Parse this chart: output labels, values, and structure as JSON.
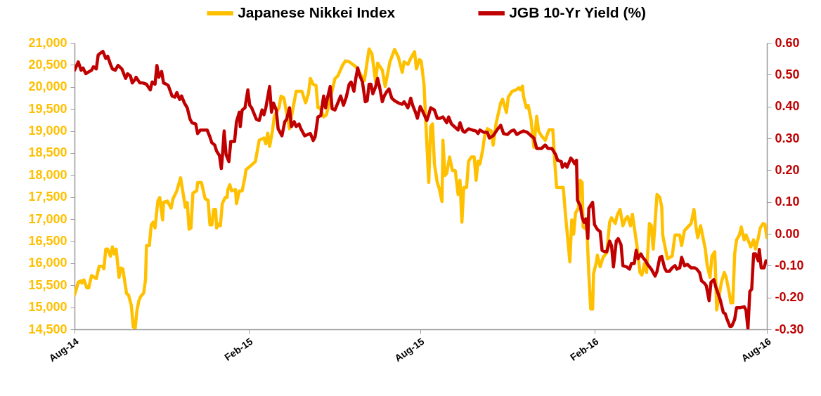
{
  "chart_data": {
    "type": "line",
    "legend": "top",
    "grid": false,
    "line_style": "solid",
    "xlim": [
      "2014-08-01",
      "2016-08-01"
    ],
    "xticks": [
      {
        "value": "2014-08-01",
        "label": "Aug-14"
      },
      {
        "value": "2015-02-01",
        "label": "Feb-15"
      },
      {
        "value": "2015-08-01",
        "label": "Aug-15"
      },
      {
        "value": "2016-02-01",
        "label": "Feb-16"
      },
      {
        "value": "2016-08-01",
        "label": "Aug-16"
      }
    ],
    "ylim": [
      14500,
      21000
    ],
    "yticks": [
      {
        "value": 14500,
        "label": "14,500"
      },
      {
        "value": 15000,
        "label": "15,000"
      },
      {
        "value": 15500,
        "label": "15,500"
      },
      {
        "value": 16000,
        "label": "16,000"
      },
      {
        "value": 16500,
        "label": "16,500"
      },
      {
        "value": 17000,
        "label": "17,000"
      },
      {
        "value": 17500,
        "label": "17,500"
      },
      {
        "value": 18000,
        "label": "18,000"
      },
      {
        "value": 18500,
        "label": "18,500"
      },
      {
        "value": 19000,
        "label": "19,000"
      },
      {
        "value": 19500,
        "label": "19,500"
      },
      {
        "value": 20000,
        "label": "20,000"
      },
      {
        "value": 20500,
        "label": "20,500"
      },
      {
        "value": 21000,
        "label": "21,000"
      }
    ],
    "y2lim": [
      -0.3,
      0.6
    ],
    "y2ticks": [
      {
        "value": -0.3,
        "label": "-0.30"
      },
      {
        "value": -0.2,
        "label": "-0.20"
      },
      {
        "value": -0.1,
        "label": "-0.10"
      },
      {
        "value": 0,
        "label": "0.00"
      },
      {
        "value": 0.1,
        "label": "0.10"
      },
      {
        "value": 0.2,
        "label": "0.20"
      },
      {
        "value": 0.3,
        "label": "0.30"
      },
      {
        "value": 0.4,
        "label": "0.40"
      },
      {
        "value": 0.5,
        "label": "0.50"
      },
      {
        "value": 0.6,
        "label": "0.60"
      }
    ],
    "series": [
      {
        "name": "Japanese Nikkei Index",
        "color": "#ffc000",
        "x": [
          "2014-08-01",
          "2014-08-05",
          "2014-08-08",
          "2014-08-09",
          "2014-08-11",
          "2014-08-14",
          "2014-08-16",
          "2014-08-19",
          "2014-08-24",
          "2014-08-27",
          "2014-08-31",
          "2014-09-01",
          "2014-09-03",
          "2014-09-05",
          "2014-09-08",
          "2014-09-10",
          "2014-09-12",
          "2014-09-14",
          "2014-09-17",
          "2014-09-19",
          "2014-09-21",
          "2014-09-25",
          "2014-09-27",
          "2014-09-30",
          "2014-10-02",
          "2014-10-04",
          "2014-10-06",
          "2014-10-08",
          "2014-10-10",
          "2014-10-13",
          "2014-10-15",
          "2014-10-16",
          "2014-10-19",
          "2014-10-21",
          "2014-10-23",
          "2014-10-25",
          "2014-10-28",
          "2014-10-30",
          "2014-11-02",
          "2014-11-03",
          "2014-11-07",
          "2014-11-11",
          "2014-11-13",
          "2014-11-17",
          "2014-11-21",
          "2014-11-26",
          "2014-11-28",
          "2014-11-30",
          "2014-12-02",
          "2014-12-04",
          "2014-12-08",
          "2014-12-09",
          "2014-12-13",
          "2014-12-17",
          "2014-12-20",
          "2014-12-22",
          "2014-12-24",
          "2014-12-26",
          "2014-12-28",
          "2014-12-29",
          "2015-01-01",
          "2015-01-02",
          "2015-01-04",
          "2015-01-07",
          "2015-01-09",
          "2015-01-10",
          "2015-01-12",
          "2015-01-14",
          "2015-01-18",
          "2015-01-19",
          "2015-01-22",
          "2015-01-25",
          "2015-01-28",
          "2015-01-29",
          "2015-02-04",
          "2015-02-08",
          "2015-02-12",
          "2015-02-17",
          "2015-02-19",
          "2015-02-21",
          "2015-02-23",
          "2015-02-26",
          "2015-02-28",
          "2015-03-05",
          "2015-03-07",
          "2015-03-10",
          "2015-03-16",
          "2015-03-18",
          "2015-03-23",
          "2015-03-29",
          "2015-04-02",
          "2015-04-05",
          "2015-04-07",
          "2015-04-10",
          "2015-04-13",
          "2015-04-15",
          "2015-04-17",
          "2015-04-21",
          "2015-04-24",
          "2015-05-03",
          "2015-05-06",
          "2015-05-11",
          "2015-05-14",
          "2015-05-18",
          "2015-05-25",
          "2015-06-03",
          "2015-06-08",
          "2015-06-11",
          "2015-06-15",
          "2015-06-17",
          "2015-06-22",
          "2015-06-25",
          "2015-06-30",
          "2015-07-05",
          "2015-07-09",
          "2015-07-13",
          "2015-07-15",
          "2015-07-19",
          "2015-07-22",
          "2015-07-26",
          "2015-07-28",
          "2015-07-31",
          "2015-08-02",
          "2015-08-05",
          "2015-08-07",
          "2015-08-10",
          "2015-08-12",
          "2015-08-14",
          "2015-08-16",
          "2015-08-19",
          "2015-08-21",
          "2015-08-24",
          "2015-08-25",
          "2015-08-27",
          "2015-08-29",
          "2015-09-01",
          "2015-09-04",
          "2015-09-07",
          "2015-09-10",
          "2015-09-12",
          "2015-09-14",
          "2015-09-16",
          "2015-09-19",
          "2015-09-21",
          "2015-09-24",
          "2015-09-27",
          "2015-09-29",
          "2015-10-01",
          "2015-10-03",
          "2015-10-06",
          "2015-10-08",
          "2015-10-11",
          "2015-10-15",
          "2015-10-17",
          "2015-10-20",
          "2015-10-25",
          "2015-10-27",
          "2015-10-31",
          "2015-11-02",
          "2015-11-06",
          "2015-11-10",
          "2015-11-13",
          "2015-11-15",
          "2015-11-17",
          "2015-11-18",
          "2015-11-21",
          "2015-11-23",
          "2015-11-26",
          "2015-11-29",
          "2015-12-02",
          "2015-12-04",
          "2015-12-07",
          "2015-12-11",
          "2015-12-15",
          "2015-12-19",
          "2015-12-21",
          "2015-12-23",
          "2015-12-30",
          "2016-01-01",
          "2016-01-06",
          "2016-01-08",
          "2016-01-10",
          "2016-01-12",
          "2016-01-15",
          "2016-01-17",
          "2016-01-19",
          "2016-01-20",
          "2016-01-24",
          "2016-01-26",
          "2016-01-28",
          "2016-01-30",
          "2016-01-31",
          "2016-02-03",
          "2016-02-04",
          "2016-02-07",
          "2016-02-10",
          "2016-02-14",
          "2016-02-17",
          "2016-02-19",
          "2016-02-23",
          "2016-02-25",
          "2016-02-28",
          "2016-03-02",
          "2016-03-05",
          "2016-03-07",
          "2016-03-10",
          "2016-03-12",
          "2016-03-17",
          "2016-03-20",
          "2016-03-22",
          "2016-03-25",
          "2016-03-27",
          "2016-03-30",
          "2016-04-01",
          "2016-04-03",
          "2016-04-07",
          "2016-04-10",
          "2016-04-12",
          "2016-04-13",
          "2016-04-18",
          "2016-04-23",
          "2016-04-26",
          "2016-05-01",
          "2016-05-03",
          "2016-05-06",
          "2016-05-13",
          "2016-05-16",
          "2016-05-18",
          "2016-05-20",
          "2016-05-23",
          "2016-05-25",
          "2016-05-28",
          "2016-05-30",
          "2016-06-02",
          "2016-06-04",
          "2016-06-07",
          "2016-06-08",
          "2016-06-09",
          "2016-06-12",
          "2016-06-14",
          "2016-06-17",
          "2016-06-19",
          "2016-06-22",
          "2016-06-24",
          "2016-06-26",
          "2016-06-28",
          "2016-06-30",
          "2016-07-03",
          "2016-07-05",
          "2016-07-08",
          "2016-07-10",
          "2016-07-15",
          "2016-07-18",
          "2016-07-20",
          "2016-07-23",
          "2016-07-25",
          "2016-07-28",
          "2016-07-30",
          "2016-08-01"
        ],
        "values": [
          15280,
          15570,
          15600,
          15550,
          15620,
          15440,
          15440,
          15720,
          15650,
          15930,
          15930,
          15870,
          16320,
          16320,
          16160,
          16370,
          16210,
          16320,
          15680,
          15890,
          15870,
          15310,
          15280,
          15040,
          14560,
          14520,
          14940,
          15150,
          15250,
          15320,
          15630,
          16400,
          16400,
          16870,
          16930,
          16800,
          17410,
          17490,
          16980,
          17380,
          17410,
          17250,
          17460,
          17640,
          17940,
          17270,
          17380,
          16770,
          16800,
          17590,
          17640,
          17830,
          17830,
          17460,
          17430,
          16870,
          16870,
          17220,
          17220,
          16800,
          16900,
          16850,
          17350,
          17490,
          17490,
          17670,
          17780,
          17640,
          17670,
          17350,
          17640,
          17640,
          17960,
          18120,
          18230,
          18310,
          18790,
          18840,
          18710,
          18950,
          18650,
          19000,
          19340,
          19530,
          19790,
          19750,
          19050,
          19320,
          19900,
          19900,
          19640,
          19850,
          20190,
          20060,
          20030,
          19530,
          19530,
          19320,
          19370,
          20190,
          20250,
          20490,
          20590,
          20570,
          20460,
          20140,
          20860,
          20750,
          20110,
          20540,
          20380,
          20010,
          20570,
          20850,
          20670,
          20330,
          20570,
          20510,
          20650,
          20800,
          20410,
          20620,
          20590,
          20060,
          19160,
          17830,
          19100,
          19160,
          18250,
          17830,
          17700,
          17400,
          18790,
          17990,
          18040,
          18410,
          18100,
          18100,
          17560,
          17880,
          16930,
          17720,
          17720,
          18310,
          18410,
          18410,
          17880,
          18310,
          18250,
          18570,
          18890,
          19050,
          19000,
          18680,
          19160,
          19640,
          19720,
          19420,
          19770,
          19900,
          19930,
          19980,
          19930,
          20020,
          19790,
          19530,
          19580,
          19260,
          18630,
          19330,
          19000,
          18890,
          18790,
          19030,
          19030,
          18310,
          17720,
          17720,
          17190,
          16030,
          16980,
          16660,
          17140,
          17250,
          17880,
          17830,
          16820,
          16760,
          15760,
          14960,
          14960,
          15760,
          16030,
          16180,
          15920,
          16130,
          16240,
          16930,
          17030,
          16900,
          17090,
          17220,
          16850,
          17010,
          17060,
          16850,
          17110,
          16370,
          15790,
          15730,
          16000,
          15790,
          16900,
          16850,
          16320,
          17560,
          17490,
          17270,
          16640,
          16100,
          16160,
          16640,
          16640,
          16400,
          16740,
          16900,
          17220,
          16850,
          16580,
          16850,
          16640,
          16320,
          15950,
          15680,
          16160,
          16260,
          15630,
          14940,
          15310,
          15570,
          15790,
          15680,
          15360,
          15100,
          15100,
          16210,
          16530,
          16640,
          16820,
          16530,
          16640,
          16370,
          16530,
          16320,
          16580,
          16800,
          16900,
          16880,
          16580
        ]
      },
      {
        "name": "JGB 10-Yr Yield (%)",
        "color": "#c00000",
        "axis": "y2",
        "x": [
          "2014-08-01",
          "2014-08-05",
          "2014-08-08",
          "2014-08-10",
          "2014-08-13",
          "2014-08-15",
          "2014-08-19",
          "2014-08-21",
          "2014-08-24",
          "2014-08-26",
          "2014-08-29",
          "2014-08-31",
          "2014-09-03",
          "2014-09-05",
          "2014-09-08",
          "2014-09-10",
          "2014-09-13",
          "2014-09-16",
          "2014-09-20",
          "2014-09-24",
          "2014-09-26",
          "2014-09-29",
          "2014-10-01",
          "2014-10-04",
          "2014-10-05",
          "2014-10-09",
          "2014-10-12",
          "2014-10-16",
          "2014-10-20",
          "2014-10-22",
          "2014-10-25",
          "2014-10-27",
          "2014-10-29",
          "2014-11-01",
          "2014-11-03",
          "2014-11-06",
          "2014-11-08",
          "2014-11-12",
          "2014-11-15",
          "2014-11-17",
          "2014-11-20",
          "2014-11-22",
          "2014-11-25",
          "2014-11-28",
          "2014-12-01",
          "2014-12-03",
          "2014-12-07",
          "2014-12-09",
          "2014-12-12",
          "2014-12-19",
          "2014-12-22",
          "2014-12-24",
          "2014-12-27",
          "2014-12-29",
          "2015-01-01",
          "2015-01-03",
          "2015-01-04",
          "2015-01-06",
          "2015-01-08",
          "2015-01-11",
          "2015-01-13",
          "2015-01-17",
          "2015-01-19",
          "2015-01-22",
          "2015-01-23",
          "2015-01-25",
          "2015-01-28",
          "2015-01-31",
          "2015-02-02",
          "2015-02-04",
          "2015-02-09",
          "2015-02-12",
          "2015-02-15",
          "2015-02-17",
          "2015-02-19",
          "2015-02-23",
          "2015-02-25",
          "2015-02-27",
          "2015-03-02",
          "2015-03-04",
          "2015-03-08",
          "2015-03-11",
          "2015-03-13",
          "2015-03-16",
          "2015-03-18",
          "2015-03-21",
          "2015-03-23",
          "2015-03-26",
          "2015-03-28",
          "2015-04-01",
          "2015-04-07",
          "2015-04-10",
          "2015-04-12",
          "2015-04-15",
          "2015-04-18",
          "2015-04-21",
          "2015-04-23",
          "2015-04-25",
          "2015-04-28",
          "2015-04-30",
          "2015-05-03",
          "2015-05-06",
          "2015-05-09",
          "2015-05-12",
          "2015-05-15",
          "2015-05-18",
          "2015-05-20",
          "2015-05-23",
          "2015-05-25",
          "2015-05-27",
          "2015-05-29",
          "2015-06-01",
          "2015-06-04",
          "2015-06-06",
          "2015-06-08",
          "2015-06-10",
          "2015-06-12",
          "2015-06-15",
          "2015-06-17",
          "2015-06-19",
          "2015-06-22",
          "2015-06-24",
          "2015-06-27",
          "2015-06-29",
          "2015-07-02",
          "2015-07-05",
          "2015-07-09",
          "2015-07-13",
          "2015-07-15",
          "2015-07-19",
          "2015-07-22",
          "2015-07-24",
          "2015-07-27",
          "2015-07-29",
          "2015-08-01",
          "2015-08-04",
          "2015-08-08",
          "2015-08-10",
          "2015-08-12",
          "2015-08-16",
          "2015-08-19",
          "2015-08-22",
          "2015-08-25",
          "2015-08-29",
          "2015-08-31",
          "2015-09-03",
          "2015-09-06",
          "2015-09-10",
          "2015-09-12",
          "2015-09-15",
          "2015-09-17",
          "2015-09-21",
          "2015-09-25",
          "2015-09-29",
          "2015-10-01",
          "2015-10-03",
          "2015-10-07",
          "2015-10-11",
          "2015-10-13",
          "2015-10-17",
          "2015-10-21",
          "2015-10-25",
          "2015-10-28",
          "2015-11-01",
          "2015-11-05",
          "2015-11-08",
          "2015-11-11",
          "2015-11-15",
          "2015-11-18",
          "2015-11-22",
          "2015-11-26",
          "2015-11-29",
          "2015-12-02",
          "2015-12-07",
          "2015-12-11",
          "2015-12-14",
          "2015-12-18",
          "2015-12-22",
          "2015-12-24",
          "2015-12-28",
          "2015-12-29",
          "2016-01-01",
          "2016-01-03",
          "2016-01-07",
          "2016-01-09",
          "2016-01-11",
          "2016-01-13",
          "2016-01-14",
          "2016-01-17",
          "2016-01-19",
          "2016-01-21",
          "2016-01-23",
          "2016-01-25",
          "2016-01-26",
          "2016-01-30",
          "2016-02-01",
          "2016-02-04",
          "2016-02-07",
          "2016-02-09",
          "2016-02-12",
          "2016-02-14",
          "2016-02-17",
          "2016-02-19",
          "2016-02-21",
          "2016-02-24",
          "2016-02-26",
          "2016-02-29",
          "2016-03-02",
          "2016-03-06",
          "2016-03-09",
          "2016-03-11",
          "2016-03-14",
          "2016-03-16",
          "2016-03-18",
          "2016-03-21",
          "2016-03-23",
          "2016-03-26",
          "2016-03-28",
          "2016-04-01",
          "2016-04-05",
          "2016-04-07",
          "2016-04-10",
          "2016-04-12",
          "2016-04-15",
          "2016-04-17",
          "2016-04-20",
          "2016-04-23",
          "2016-04-26",
          "2016-04-28",
          "2016-05-01",
          "2016-05-03",
          "2016-05-06",
          "2016-05-09",
          "2016-05-13",
          "2016-05-17",
          "2016-05-19",
          "2016-05-22",
          "2016-05-24",
          "2016-05-27",
          "2016-05-29",
          "2016-06-01",
          "2016-06-03",
          "2016-06-06",
          "2016-06-08",
          "2016-06-11",
          "2016-06-13",
          "2016-06-16",
          "2016-06-18",
          "2016-06-20",
          "2016-06-23",
          "2016-06-25",
          "2016-06-28",
          "2016-06-30",
          "2016-07-04",
          "2016-07-08",
          "2016-07-10",
          "2016-07-12",
          "2016-07-14",
          "2016-07-16",
          "2016-07-18",
          "2016-07-20",
          "2016-07-23",
          "2016-07-24",
          "2016-07-26",
          "2016-07-29",
          "2016-07-31"
        ],
        "values": [
          0.514,
          0.54,
          0.514,
          0.521,
          0.503,
          0.507,
          0.514,
          0.525,
          0.518,
          0.562,
          0.569,
          0.573,
          0.551,
          0.558,
          0.532,
          0.518,
          0.514,
          0.529,
          0.518,
          0.488,
          0.503,
          0.496,
          0.474,
          0.485,
          0.492,
          0.474,
          0.474,
          0.47,
          0.452,
          0.477,
          0.47,
          0.529,
          0.492,
          0.51,
          0.474,
          0.47,
          0.466,
          0.433,
          0.429,
          0.444,
          0.422,
          0.433,
          0.411,
          0.396,
          0.36,
          0.349,
          0.345,
          0.315,
          0.326,
          0.326,
          0.304,
          0.286,
          0.279,
          0.26,
          0.246,
          0.205,
          0.238,
          0.323,
          0.249,
          0.227,
          0.29,
          0.29,
          0.352,
          0.382,
          0.337,
          0.389,
          0.396,
          0.452,
          0.404,
          0.396,
          0.36,
          0.356,
          0.389,
          0.374,
          0.396,
          0.463,
          0.382,
          0.411,
          0.389,
          0.33,
          0.308,
          0.352,
          0.36,
          0.396,
          0.337,
          0.352,
          0.337,
          0.345,
          0.33,
          0.308,
          0.315,
          0.293,
          0.304,
          0.367,
          0.371,
          0.433,
          0.396,
          0.426,
          0.463,
          0.393,
          0.389,
          0.411,
          0.433,
          0.404,
          0.43,
          0.47,
          0.477,
          0.448,
          0.488,
          0.521,
          0.499,
          0.477,
          0.415,
          0.418,
          0.47,
          0.47,
          0.44,
          0.463,
          0.488,
          0.463,
          0.415,
          0.433,
          0.448,
          0.455,
          0.426,
          0.418,
          0.411,
          0.407,
          0.415,
          0.396,
          0.426,
          0.404,
          0.382,
          0.363,
          0.4,
          0.382,
          0.356,
          0.374,
          0.396,
          0.389,
          0.363,
          0.363,
          0.367,
          0.349,
          0.367,
          0.345,
          0.337,
          0.326,
          0.349,
          0.323,
          0.319,
          0.33,
          0.326,
          0.323,
          0.315,
          0.326,
          0.319,
          0.319,
          0.301,
          0.308,
          0.326,
          0.341,
          0.315,
          0.312,
          0.323,
          0.326,
          0.312,
          0.319,
          0.323,
          0.319,
          0.308,
          0.301,
          0.268,
          0.268,
          0.279,
          0.268,
          0.268,
          0.249,
          0.231,
          0.227,
          0.209,
          0.22,
          0.209,
          0.238,
          0.231,
          0.22,
          0.231,
          0.106,
          0.088,
          0.051,
          0.036,
          0.047,
          -0.015,
          0.08,
          0.099,
          0.029,
          0.014,
          0.007,
          -0.052,
          -0.056,
          -0.056,
          -0.023,
          -0.037,
          -0.104,
          -0.023,
          -0.015,
          -0.034,
          -0.1,
          -0.104,
          -0.111,
          -0.093,
          -0.093,
          -0.052,
          -0.078,
          -0.063,
          -0.074,
          -0.085,
          -0.096,
          -0.111,
          -0.133,
          -0.118,
          -0.074,
          -0.071,
          -0.107,
          -0.118,
          -0.118,
          -0.107,
          -0.1,
          -0.111,
          -0.107,
          -0.074,
          -0.1,
          -0.096,
          -0.107,
          -0.107,
          -0.111,
          -0.122,
          -0.148,
          -0.155,
          -0.163,
          -0.21,
          -0.152,
          -0.144,
          -0.166,
          -0.192,
          -0.21,
          -0.247,
          -0.251,
          -0.269,
          -0.291,
          -0.29,
          -0.269,
          -0.232,
          -0.232,
          -0.229,
          -0.24,
          -0.298,
          -0.181,
          -0.174,
          -0.063,
          -0.063,
          -0.085,
          -0.049,
          -0.107,
          -0.107,
          -0.085
        ]
      }
    ]
  }
}
